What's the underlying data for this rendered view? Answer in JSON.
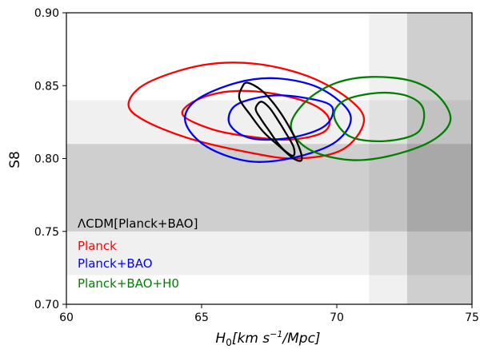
{
  "chart_data": {
    "type": "contour",
    "xlabel_main": "H",
    "xlabel_sub": "0",
    "xlabel_units_a": "[km s",
    "xlabel_sup": "−1",
    "xlabel_units_b": "/Mpc]",
    "ylabel": "S8",
    "xlim": [
      60,
      75
    ],
    "ylim": [
      0.7,
      0.9
    ],
    "xticks": [
      60,
      65,
      70,
      75
    ],
    "xtick_labels": [
      "60",
      "65",
      "70",
      "75"
    ],
    "yticks": [
      0.7,
      0.75,
      0.8,
      0.85,
      0.9
    ],
    "ytick_labels": [
      "0.70",
      "0.75",
      "0.80",
      "0.85",
      "0.90"
    ],
    "grid": false,
    "legend_placement": "lower-left",
    "shaded_bands": [
      {
        "axis": "y",
        "range": [
          0.72,
          0.84
        ],
        "color": "#f0f0f0"
      },
      {
        "axis": "y",
        "range": [
          0.75,
          0.81
        ],
        "color": "#dcdcdc"
      },
      {
        "axis": "x",
        "range": [
          71.2,
          75
        ],
        "color": "#f0f0f0"
      },
      {
        "axis": "x",
        "range": [
          72.6,
          75
        ],
        "color": "#dcdcdc"
      }
    ],
    "series": [
      {
        "name": "ΛCDM[Planck+BAO]",
        "color": "#000000",
        "contours": [
          {
            "level": "1sigma",
            "points": [
              [
                67.2,
                0.839
              ],
              [
                67.5,
                0.835
              ],
              [
                67.8,
                0.827
              ],
              [
                68.1,
                0.818
              ],
              [
                68.4,
                0.808
              ],
              [
                68.4,
                0.802
              ],
              [
                68.1,
                0.805
              ],
              [
                67.8,
                0.811
              ],
              [
                67.5,
                0.819
              ],
              [
                67.2,
                0.827
              ],
              [
                67.0,
                0.834
              ]
            ]
          },
          {
            "level": "2sigma",
            "points": [
              [
                66.7,
                0.852
              ],
              [
                67.2,
                0.847
              ],
              [
                67.7,
                0.837
              ],
              [
                68.2,
                0.823
              ],
              [
                68.6,
                0.808
              ],
              [
                68.7,
                0.799
              ],
              [
                68.4,
                0.8
              ],
              [
                67.9,
                0.808
              ],
              [
                67.3,
                0.818
              ],
              [
                66.8,
                0.83
              ],
              [
                66.4,
                0.841
              ],
              [
                66.5,
                0.849
              ]
            ]
          }
        ]
      },
      {
        "name": "Planck",
        "color": "#ff0000",
        "contours": [
          {
            "level": "1sigma",
            "points": [
              [
                64.3,
                0.83
              ],
              [
                64.8,
                0.84
              ],
              [
                66.0,
                0.846
              ],
              [
                67.5,
                0.845
              ],
              [
                69.0,
                0.838
              ],
              [
                69.7,
                0.828
              ],
              [
                69.5,
                0.818
              ],
              [
                68.3,
                0.813
              ],
              [
                66.8,
                0.815
              ],
              [
                65.4,
                0.82
              ]
            ]
          },
          {
            "level": "2sigma",
            "points": [
              [
                62.3,
                0.838
              ],
              [
                63.0,
                0.852
              ],
              [
                65.0,
                0.864
              ],
              [
                67.0,
                0.865
              ],
              [
                69.0,
                0.856
              ],
              [
                70.5,
                0.84
              ],
              [
                71.0,
                0.825
              ],
              [
                70.2,
                0.806
              ],
              [
                68.5,
                0.8
              ],
              [
                66.8,
                0.804
              ],
              [
                64.5,
                0.814
              ],
              [
                62.8,
                0.827
              ]
            ]
          }
        ]
      },
      {
        "name": "Planck+BAO",
        "color": "#0000ff",
        "contours": [
          {
            "level": "1sigma",
            "points": [
              [
                66.0,
                0.826
              ],
              [
                66.3,
                0.837
              ],
              [
                67.5,
                0.843
              ],
              [
                68.7,
                0.842
              ],
              [
                69.8,
                0.836
              ],
              [
                69.6,
                0.823
              ],
              [
                68.5,
                0.815
              ],
              [
                67.2,
                0.813
              ],
              [
                66.4,
                0.817
              ]
            ]
          },
          {
            "level": "2sigma",
            "points": [
              [
                64.4,
                0.825
              ],
              [
                64.8,
                0.84
              ],
              [
                66.3,
                0.852
              ],
              [
                67.8,
                0.855
              ],
              [
                69.4,
                0.848
              ],
              [
                70.5,
                0.83
              ],
              [
                70.0,
                0.812
              ],
              [
                68.5,
                0.801
              ],
              [
                66.8,
                0.798
              ],
              [
                65.2,
                0.808
              ]
            ]
          }
        ]
      },
      {
        "name": "Planck+BAO+H0",
        "color": "#008000",
        "contours": [
          {
            "level": "1sigma",
            "points": [
              [
                69.9,
                0.829
              ],
              [
                70.3,
                0.84
              ],
              [
                71.5,
                0.845
              ],
              [
                72.6,
                0.843
              ],
              [
                73.2,
                0.834
              ],
              [
                73.0,
                0.818
              ],
              [
                71.8,
                0.812
              ],
              [
                70.5,
                0.815
              ]
            ]
          },
          {
            "level": "2sigma",
            "points": [
              [
                68.3,
                0.822
              ],
              [
                68.9,
                0.84
              ],
              [
                70.0,
                0.852
              ],
              [
                71.3,
                0.856
              ],
              [
                72.8,
                0.853
              ],
              [
                73.8,
                0.842
              ],
              [
                74.2,
                0.826
              ],
              [
                73.5,
                0.812
              ],
              [
                72.0,
                0.802
              ],
              [
                70.5,
                0.799
              ],
              [
                69.0,
                0.806
              ]
            ]
          }
        ]
      }
    ]
  }
}
